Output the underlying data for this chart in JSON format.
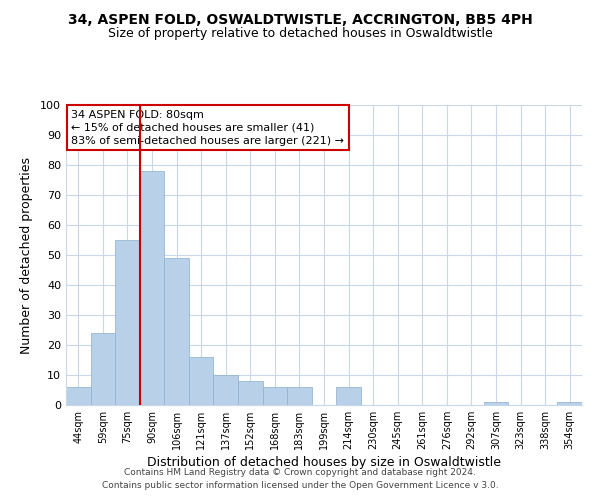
{
  "title": "34, ASPEN FOLD, OSWALDTWISTLE, ACCRINGTON, BB5 4PH",
  "subtitle": "Size of property relative to detached houses in Oswaldtwistle",
  "xlabel": "Distribution of detached houses by size in Oswaldtwistle",
  "ylabel": "Number of detached properties",
  "bar_labels": [
    "44sqm",
    "59sqm",
    "75sqm",
    "90sqm",
    "106sqm",
    "121sqm",
    "137sqm",
    "152sqm",
    "168sqm",
    "183sqm",
    "199sqm",
    "214sqm",
    "230sqm",
    "245sqm",
    "261sqm",
    "276sqm",
    "292sqm",
    "307sqm",
    "323sqm",
    "338sqm",
    "354sqm"
  ],
  "bar_values": [
    6,
    24,
    55,
    78,
    49,
    16,
    10,
    8,
    6,
    6,
    0,
    6,
    0,
    0,
    0,
    0,
    0,
    1,
    0,
    0,
    1
  ],
  "bar_color": "#b8d0e8",
  "bar_edge_color": "#8ab0d0",
  "vline_x_index": 2,
  "vline_color": "#cc0000",
  "annotation_line1": "34 ASPEN FOLD: 80sqm",
  "annotation_line2": "← 15% of detached houses are smaller (41)",
  "annotation_line3": "83% of semi-detached houses are larger (221) →",
  "annotation_box_color": "#ffffff",
  "annotation_box_edge": "#cc0000",
  "ylim": [
    0,
    100
  ],
  "yticks": [
    0,
    10,
    20,
    30,
    40,
    50,
    60,
    70,
    80,
    90,
    100
  ],
  "footer1": "Contains HM Land Registry data © Crown copyright and database right 2024.",
  "footer2": "Contains public sector information licensed under the Open Government Licence v 3.0.",
  "bg_color": "#ffffff",
  "grid_color": "#c8d8e8",
  "title_fontsize": 10,
  "subtitle_fontsize": 9
}
